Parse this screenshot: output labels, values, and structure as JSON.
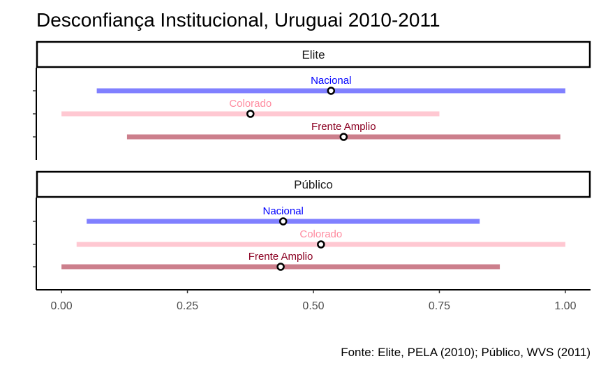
{
  "chart_data": {
    "type": "interval",
    "title": "Desconfiança Institucional, Uruguai 2010-2011",
    "caption": "Fonte: Elite, PELA (2010); Público, WVS (2011)",
    "xlim": [
      -0.05,
      1.05
    ],
    "x_ticks": [
      0.0,
      0.25,
      0.5,
      0.75,
      1.0
    ],
    "x_tick_labels": [
      "0.00",
      "0.25",
      "0.50",
      "0.75",
      "1.00"
    ],
    "colors": {
      "Nacional": {
        "bar": "#8080ff",
        "label": "#0000ff"
      },
      "Colorado": {
        "bar": "#ffc8d2",
        "label": "#ff8ca0"
      },
      "Frente Amplio": {
        "bar": "#cc7f8c",
        "label": "#8b0022"
      }
    },
    "panels": [
      {
        "name": "Elite",
        "series": [
          {
            "name": "Nacional",
            "low": 0.07,
            "high": 1.0,
            "point": 0.535
          },
          {
            "name": "Colorado",
            "low": 0.0,
            "high": 0.75,
            "point": 0.375
          },
          {
            "name": "Frente Amplio",
            "low": 0.13,
            "high": 0.99,
            "point": 0.56
          }
        ]
      },
      {
        "name": "Público",
        "series": [
          {
            "name": "Nacional",
            "low": 0.05,
            "high": 0.83,
            "point": 0.44
          },
          {
            "name": "Colorado",
            "low": 0.03,
            "high": 1.0,
            "point": 0.515
          },
          {
            "name": "Frente Amplio",
            "low": 0.0,
            "high": 0.87,
            "point": 0.435
          }
        ]
      }
    ]
  }
}
